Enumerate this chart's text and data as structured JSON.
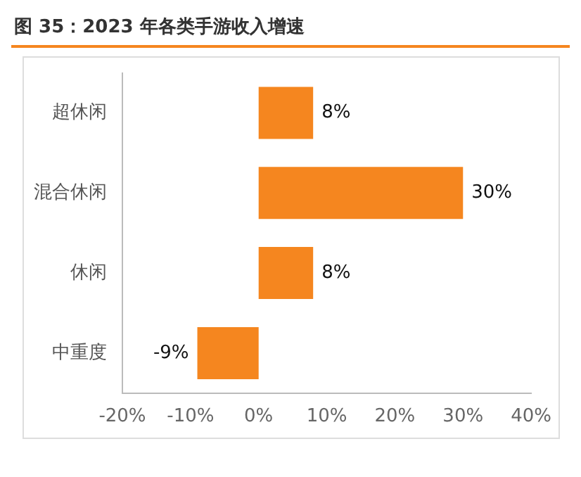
{
  "chart_data": {
    "type": "bar",
    "orientation": "horizontal",
    "title": "图 35：2023 年各类手游收入增速",
    "categories": [
      "超休闲",
      "混合休闲",
      "休闲",
      "中重度"
    ],
    "values": [
      8,
      30,
      8,
      -9
    ],
    "color": "#f5861f",
    "value_labels": [
      "8%",
      "30%",
      "8%",
      "-9%"
    ],
    "xlim": [
      -20,
      40
    ],
    "xticks": [
      {
        "value": -20,
        "label": "-20%"
      },
      {
        "value": -10,
        "label": "-10%"
      },
      {
        "value": 0,
        "label": "0%"
      },
      {
        "value": 10,
        "label": "10%"
      },
      {
        "value": 20,
        "label": "20%"
      },
      {
        "value": 30,
        "label": "30%"
      },
      {
        "value": 40,
        "label": "40%"
      }
    ],
    "grid": false,
    "legend": false
  }
}
